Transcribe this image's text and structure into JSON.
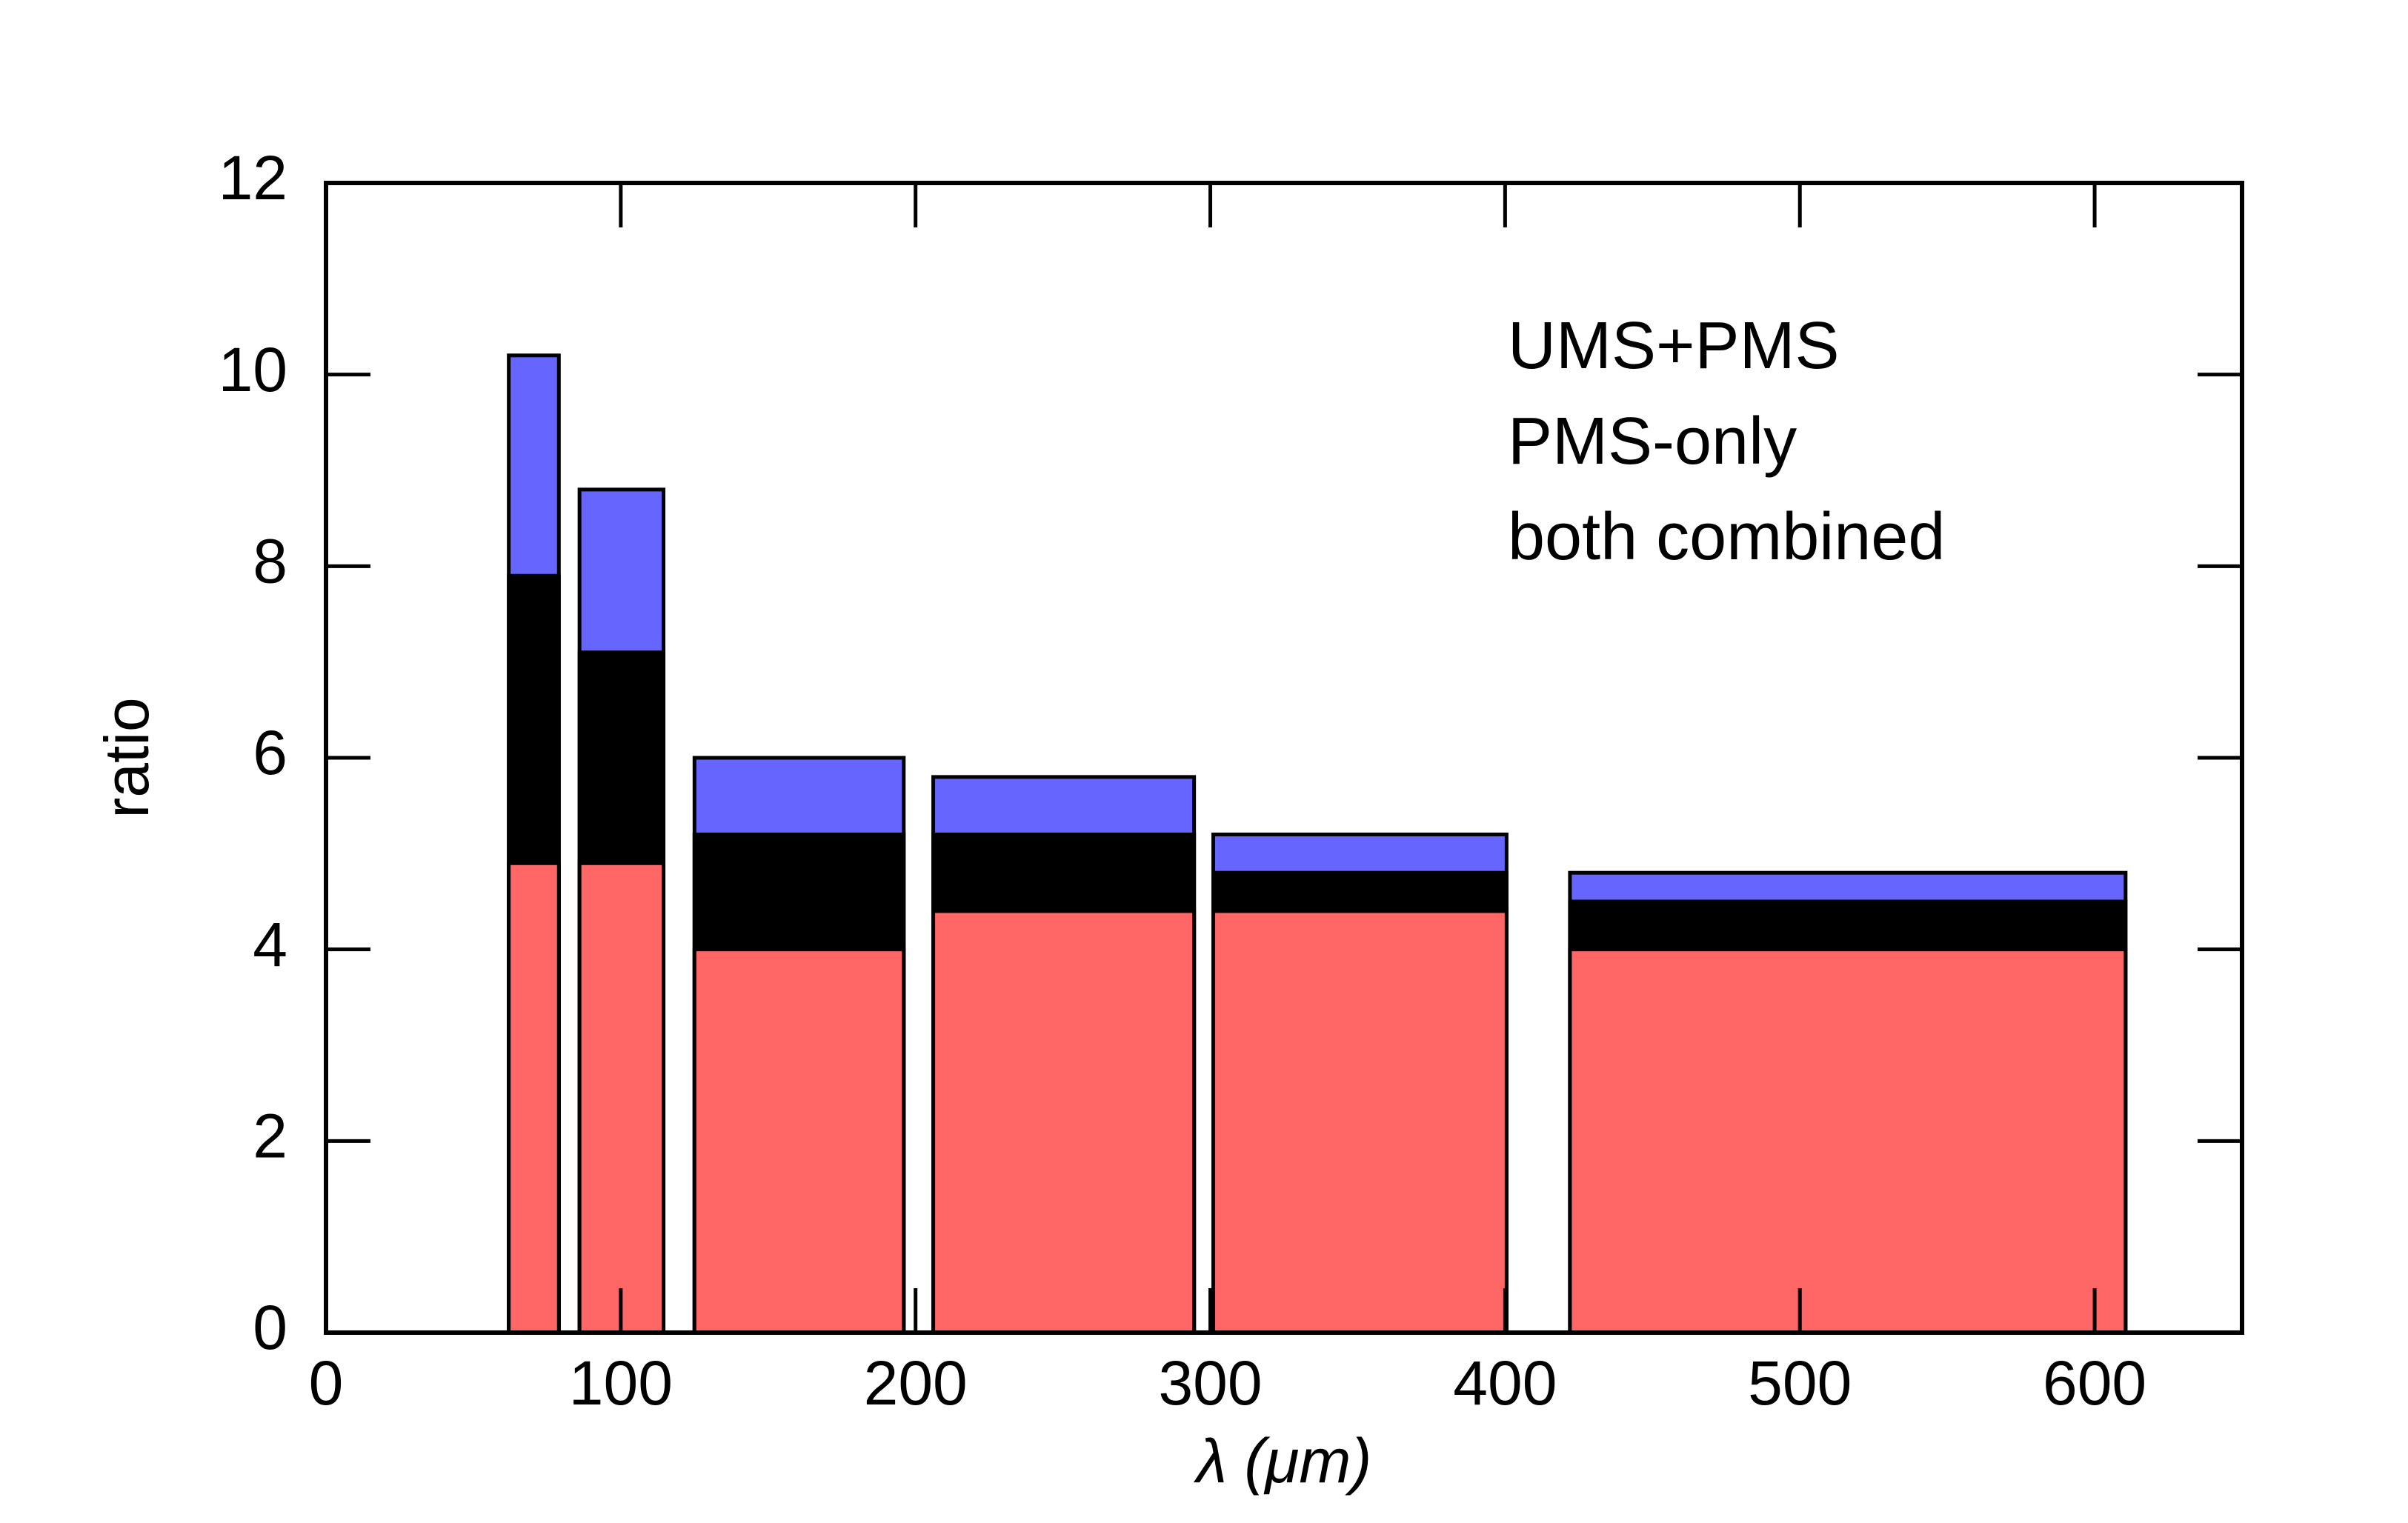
{
  "chart_data": {
    "type": "bar",
    "x_label": "λ (μm)",
    "y_label": "ratio",
    "x_start": [
      62,
      86,
      125,
      206,
      301,
      422
    ],
    "x_end": [
      79,
      114.5,
      196,
      294.5,
      400.5,
      610.5
    ],
    "series": [
      {
        "name": "UMS+PMS",
        "color": "#6666ff",
        "values": [
          10.2,
          8.8,
          6.0,
          5.8,
          5.2,
          4.8
        ]
      },
      {
        "name": "PMS-only",
        "color": "#ff6666",
        "values": [
          4.9,
          4.9,
          4.0,
          4.4,
          4.4,
          4.0
        ]
      },
      {
        "name": "both combined",
        "color": "#000000",
        "values": [
          7.9,
          7.1,
          5.2,
          5.2,
          4.8,
          4.5
        ]
      }
    ],
    "xlim": [
      0,
      650
    ],
    "xticks": [
      0,
      100,
      200,
      300,
      400,
      500,
      600
    ],
    "ylim": [
      0,
      12
    ],
    "yticks": [
      0,
      2,
      4,
      6,
      8,
      10,
      12
    ],
    "grid": false,
    "legend": "upper right"
  }
}
